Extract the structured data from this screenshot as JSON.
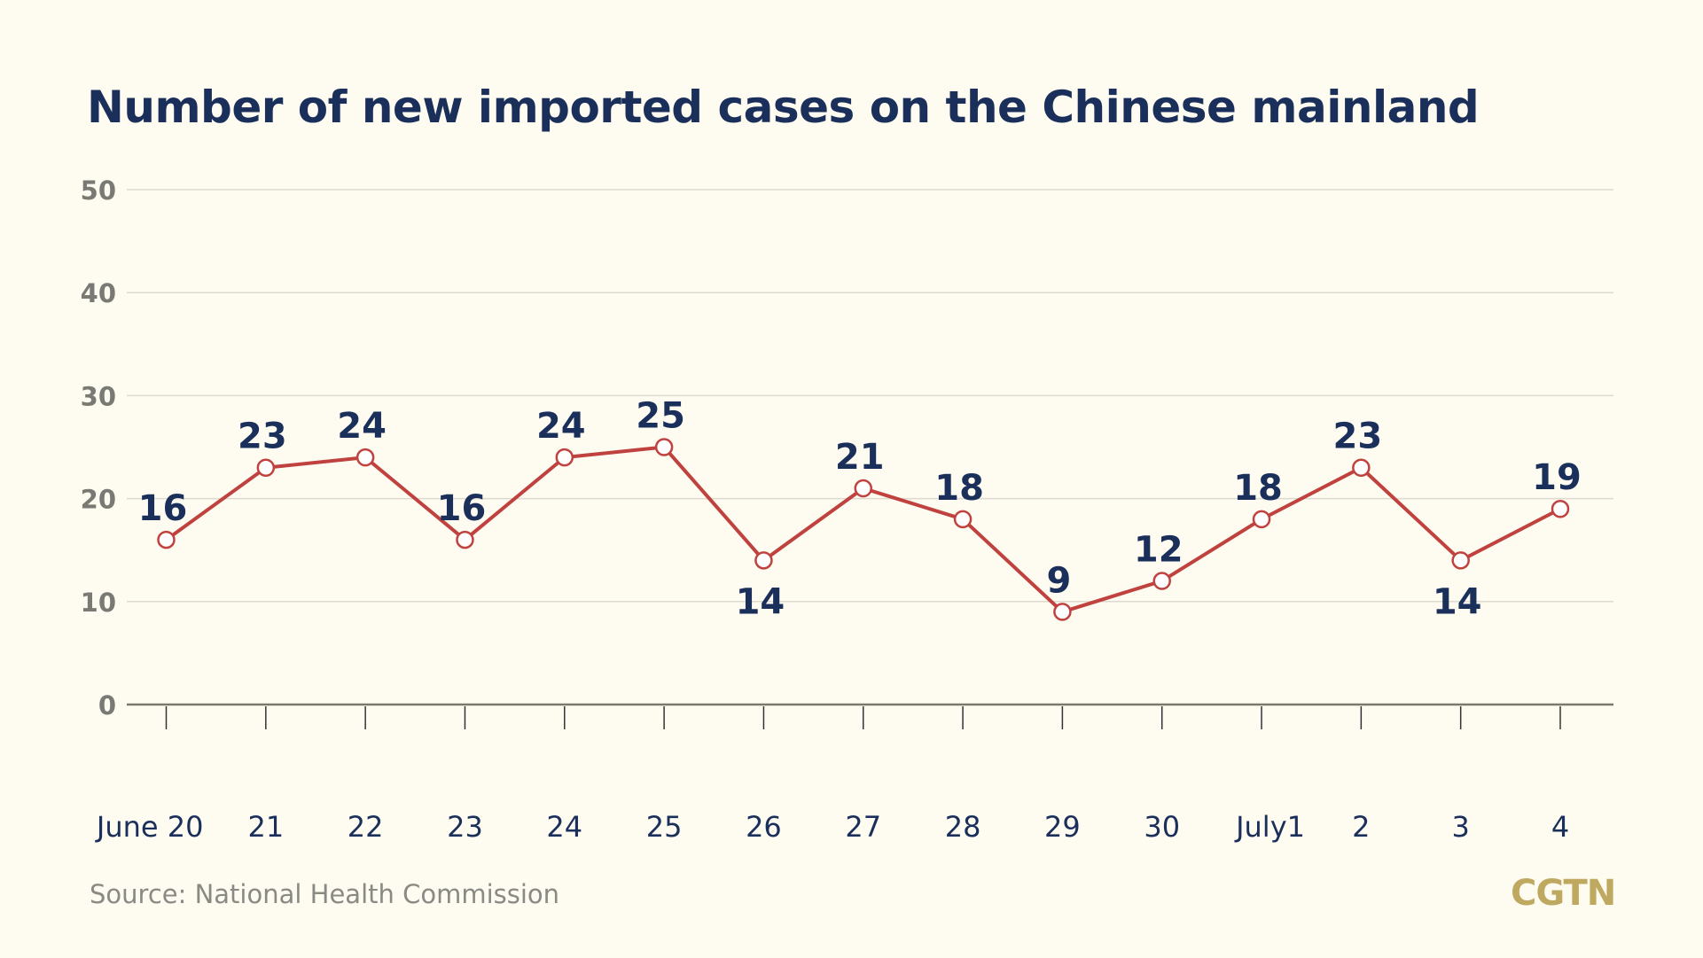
{
  "title": "Number of new imported cases on the Chinese mainland",
  "source": "Source: National Health Commission",
  "logo": "CGTN",
  "colors": {
    "background": "#fefbf1",
    "line": "#c0423f",
    "label": "#1b2f5b",
    "axis_text": "#7a7a74",
    "grid": "#dedad0",
    "logo": "#bfa960"
  },
  "chart_data": {
    "type": "line",
    "title": "Number of new imported cases on the Chinese mainland",
    "xlabel": "",
    "ylabel": "",
    "categories": [
      "June 20",
      "21",
      "22",
      "23",
      "24",
      "25",
      "26",
      "27",
      "28",
      "29",
      "30",
      "July1",
      "2",
      "3",
      "4"
    ],
    "values": [
      16,
      23,
      24,
      16,
      24,
      25,
      14,
      21,
      18,
      9,
      12,
      18,
      23,
      14,
      19
    ],
    "label_below": [
      false,
      false,
      false,
      false,
      false,
      false,
      true,
      false,
      false,
      false,
      false,
      false,
      false,
      true,
      false
    ],
    "ylim": [
      0,
      50
    ],
    "yticks": [
      0,
      10,
      20,
      30,
      40,
      50
    ],
    "grid": true,
    "markers": "hollow-circle"
  }
}
